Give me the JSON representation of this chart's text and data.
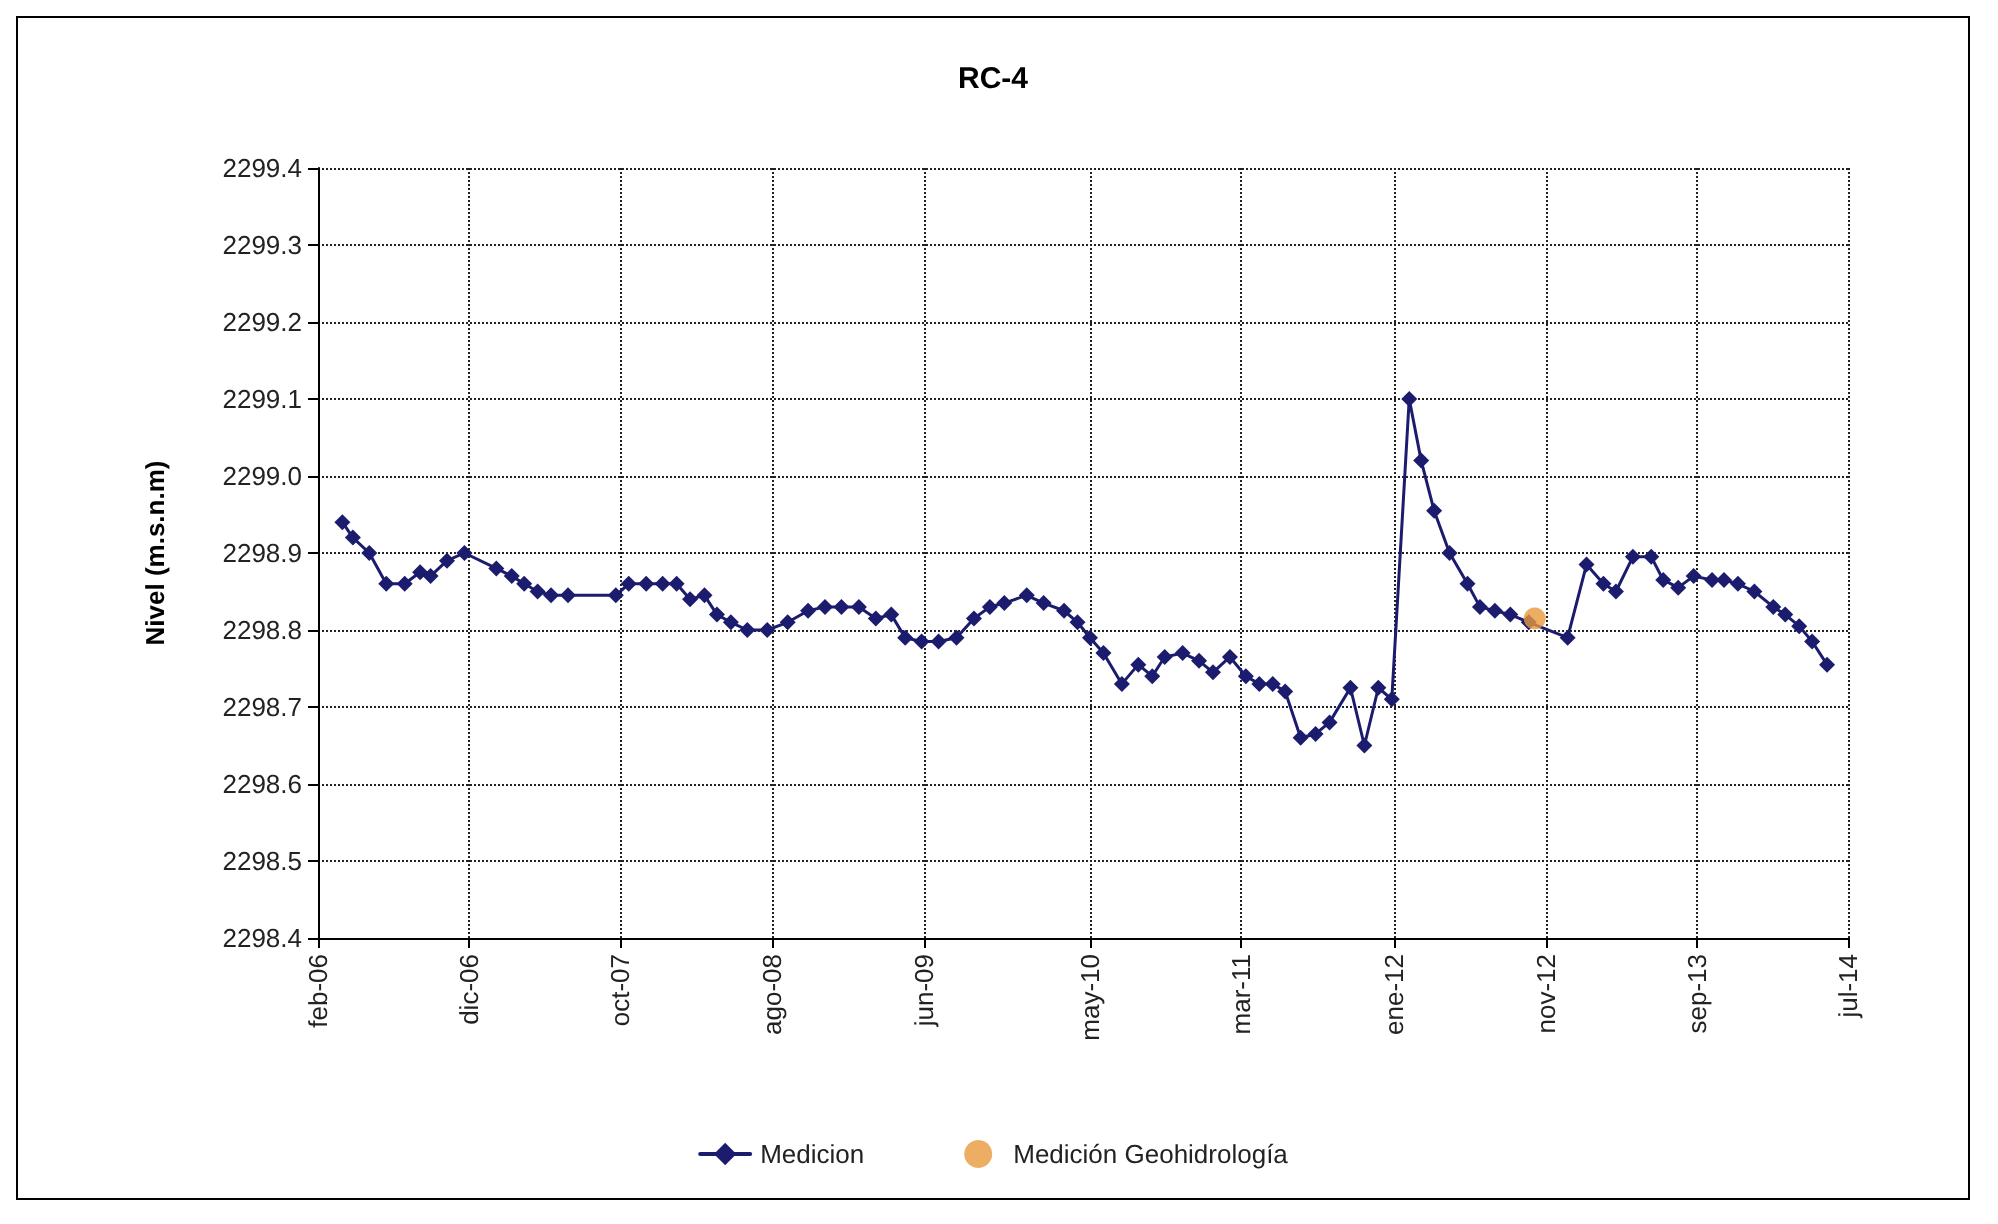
{
  "chart_data": {
    "type": "line",
    "title": "RC-4",
    "ylabel": "Nivel (m.s.n.m)",
    "xlim": [
      "2006-02-01",
      "2014-07-01"
    ],
    "xticks": [
      {
        "value": "2006-02-01",
        "label": "feb-06"
      },
      {
        "value": "2006-12-01",
        "label": "dic-06"
      },
      {
        "value": "2007-10-01",
        "label": "oct-07"
      },
      {
        "value": "2008-08-01",
        "label": "ago-08"
      },
      {
        "value": "2009-06-01",
        "label": "jun-09"
      },
      {
        "value": "2010-05-01",
        "label": "may-10"
      },
      {
        "value": "2011-03-01",
        "label": "mar-11"
      },
      {
        "value": "2012-01-01",
        "label": "ene-12"
      },
      {
        "value": "2012-11-01",
        "label": "nov-12"
      },
      {
        "value": "2013-09-01",
        "label": "sep-13"
      },
      {
        "value": "2014-07-01",
        "label": "jul-14"
      }
    ],
    "ylim": [
      2298.4,
      2299.4
    ],
    "yticks": [
      {
        "value": 2298.4,
        "label": "2298.4"
      },
      {
        "value": 2298.5,
        "label": "2298.5"
      },
      {
        "value": 2298.6,
        "label": "2298.6"
      },
      {
        "value": 2298.7,
        "label": "2298.7"
      },
      {
        "value": 2298.8,
        "label": "2298.8"
      },
      {
        "value": 2298.9,
        "label": "2298.9"
      },
      {
        "value": 2299.0,
        "label": "2299.0"
      },
      {
        "value": 2299.1,
        "label": "2299.1"
      },
      {
        "value": 2299.2,
        "label": "2299.2"
      },
      {
        "value": 2299.3,
        "label": "2299.3"
      },
      {
        "value": 2299.4,
        "label": "2299.4"
      }
    ],
    "grid": true,
    "legend": "bottom",
    "series": [
      {
        "name": "Medicion",
        "color": "#1c1c6e",
        "marker": "diamond",
        "line_style": "solid",
        "x": [
          "2006-03-22",
          "2006-04-12",
          "2006-05-15",
          "2006-06-18",
          "2006-07-25",
          "2006-08-25",
          "2006-09-15",
          "2006-10-18",
          "2006-11-22",
          "2007-01-25",
          "2007-02-25",
          "2007-03-22",
          "2007-04-18",
          "2007-05-15",
          "2007-06-18",
          "2007-09-22",
          "2007-10-18",
          "2007-11-22",
          "2007-12-25",
          "2008-01-22",
          "2008-02-18",
          "2008-03-18",
          "2008-04-12",
          "2008-05-10",
          "2008-06-12",
          "2008-07-22",
          "2008-09-01",
          "2008-10-12",
          "2008-11-15",
          "2008-12-18",
          "2009-01-22",
          "2009-02-25",
          "2009-03-28",
          "2009-04-25",
          "2009-05-28",
          "2009-07-01",
          "2009-08-06",
          "2009-09-10",
          "2009-10-12",
          "2009-11-10",
          "2009-12-25",
          "2010-01-28",
          "2010-03-10",
          "2010-04-06",
          "2010-05-01",
          "2010-05-28",
          "2010-07-04",
          "2010-08-06",
          "2010-09-03",
          "2010-09-28",
          "2010-11-03",
          "2010-12-06",
          "2011-01-03",
          "2011-02-06",
          "2011-03-10",
          "2011-04-06",
          "2011-05-03",
          "2011-05-28",
          "2011-06-28",
          "2011-07-28",
          "2011-08-25",
          "2011-10-06",
          "2011-11-03",
          "2011-12-01",
          "2011-12-28",
          "2012-02-01",
          "2012-02-25",
          "2012-03-22",
          "2012-04-22",
          "2012-05-28",
          "2012-06-22",
          "2012-07-22",
          "2012-08-22",
          "2012-09-28",
          "2012-12-15",
          "2013-01-22",
          "2013-02-25",
          "2013-03-22",
          "2013-04-25",
          "2013-06-01",
          "2013-06-25",
          "2013-07-25",
          "2013-08-25",
          "2013-10-01",
          "2013-10-25",
          "2013-11-22",
          "2013-12-25",
          "2014-02-01",
          "2014-02-25",
          "2014-03-25",
          "2014-04-20",
          "2014-05-20"
        ],
        "values": [
          2298.94,
          2298.92,
          2298.9,
          2298.86,
          2298.86,
          2298.875,
          2298.87,
          2298.89,
          2298.9,
          2298.88,
          2298.87,
          2298.86,
          2298.85,
          2298.845,
          2298.845,
          2298.845,
          2298.86,
          2298.86,
          2298.86,
          2298.86,
          2298.84,
          2298.845,
          2298.82,
          2298.81,
          2298.8,
          2298.8,
          2298.81,
          2298.825,
          2298.83,
          2298.83,
          2298.83,
          2298.815,
          2298.82,
          2298.79,
          2298.785,
          2298.785,
          2298.79,
          2298.815,
          2298.83,
          2298.835,
          2298.845,
          2298.835,
          2298.825,
          2298.81,
          2298.79,
          2298.77,
          2298.73,
          2298.755,
          2298.74,
          2298.765,
          2298.77,
          2298.76,
          2298.745,
          2298.765,
          2298.74,
          2298.73,
          2298.73,
          2298.72,
          2298.66,
          2298.665,
          2298.68,
          2298.725,
          2298.65,
          2298.725,
          2298.71,
          2299.1,
          2299.02,
          2298.955,
          2298.9,
          2298.86,
          2298.83,
          2298.825,
          2298.82,
          2298.81,
          2298.79,
          2298.885,
          2298.86,
          2298.85,
          2298.895,
          2298.895,
          2298.865,
          2298.855,
          2298.87,
          2298.865,
          2298.865,
          2298.86,
          2298.85,
          2298.83,
          2298.82,
          2298.805,
          2298.785,
          2298.755
        ]
      },
      {
        "name": "Medición Geohidrología",
        "type": "scatter",
        "color": "#e89a3c",
        "marker": "circle",
        "x": [
          "2012-10-10"
        ],
        "values": [
          2298.815
        ]
      }
    ]
  }
}
